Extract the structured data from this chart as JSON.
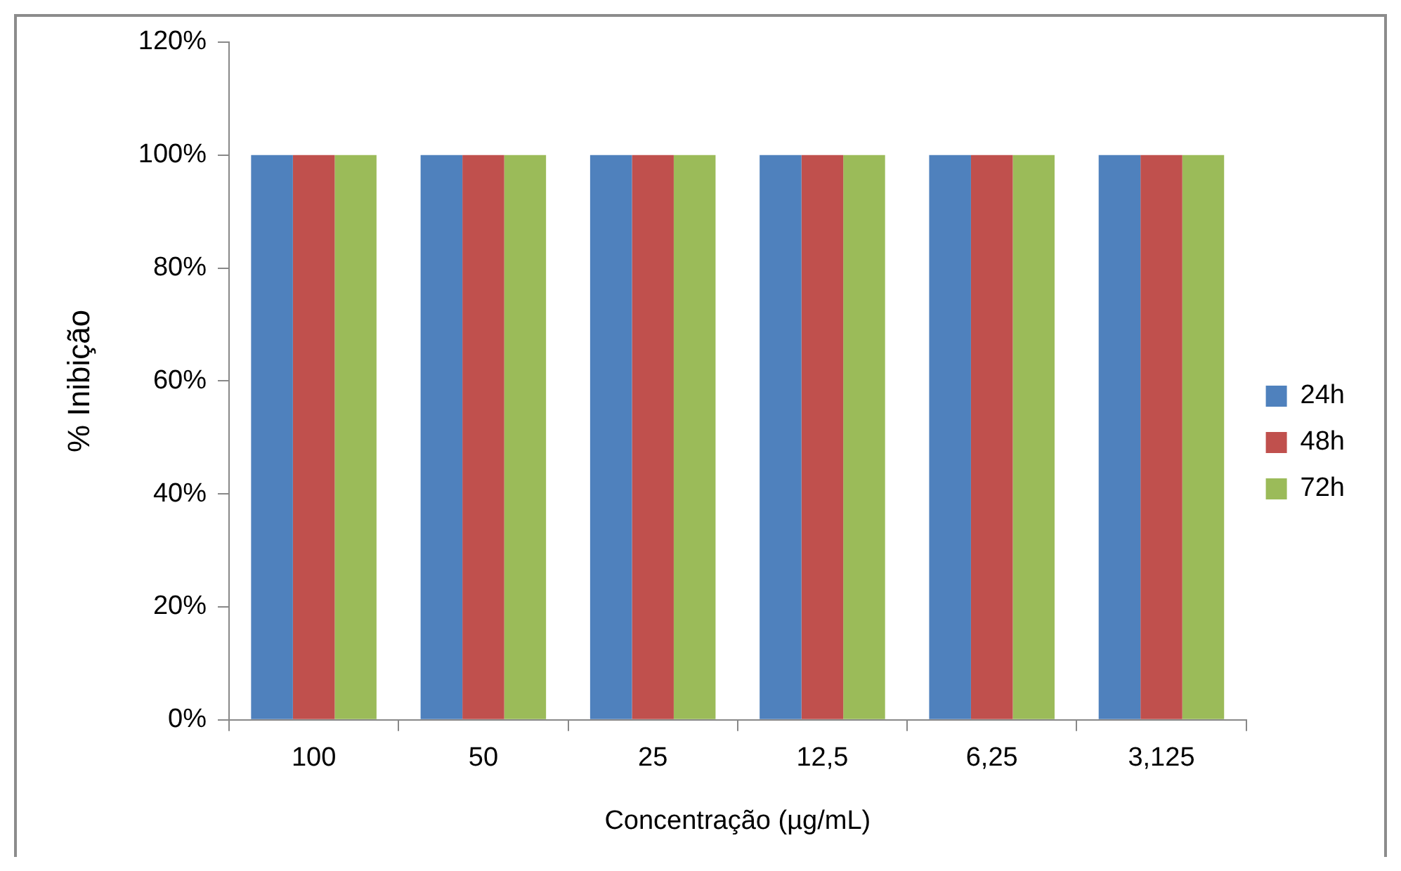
{
  "chart_data": {
    "type": "bar",
    "xlabel": "Concentração (µg/mL)",
    "ylabel": "% Inibição",
    "categories": [
      "100",
      "50",
      "25",
      "12,5",
      "6,25",
      "3,125"
    ],
    "series": [
      {
        "name": "24h",
        "color": "#4f81bd",
        "values": [
          100,
          100,
          100,
          100,
          100,
          100
        ]
      },
      {
        "name": "48h",
        "color": "#c0504d",
        "values": [
          100,
          100,
          100,
          100,
          100,
          100
        ]
      },
      {
        "name": "72h",
        "color": "#9bbb59",
        "values": [
          100,
          100,
          100,
          100,
          100,
          100
        ]
      }
    ],
    "ylim": [
      0,
      120
    ],
    "yticks": [
      {
        "value": 0,
        "label": "0%"
      },
      {
        "value": 20,
        "label": "20%"
      },
      {
        "value": 40,
        "label": "40%"
      },
      {
        "value": 60,
        "label": "60%"
      },
      {
        "value": 80,
        "label": "80%"
      },
      {
        "value": 100,
        "label": "100%"
      },
      {
        "value": 120,
        "label": "120%"
      }
    ],
    "grid": false,
    "legend": "right"
  }
}
